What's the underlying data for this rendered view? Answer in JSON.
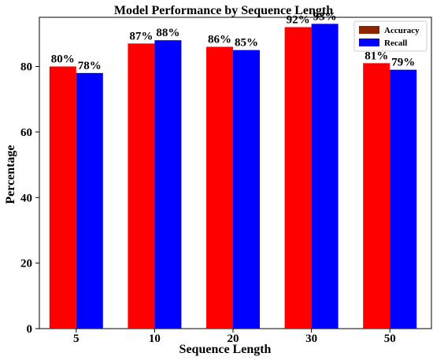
{
  "chart_data": {
    "type": "bar",
    "title": "Model Performance by Sequence Length",
    "xlabel": "Sequence Length",
    "ylabel": "Percentage",
    "categories": [
      "5",
      "10",
      "20",
      "30",
      "50"
    ],
    "series": [
      {
        "name": "Accuracy",
        "values": [
          80,
          87,
          86,
          92,
          81
        ],
        "labels": [
          "80%",
          "87%",
          "86%",
          "92%",
          "81%"
        ],
        "color": "#ff0000",
        "legend_color": "#8b2500"
      },
      {
        "name": "Recall",
        "values": [
          78,
          88,
          85,
          93,
          79
        ],
        "labels": [
          "78%",
          "88%",
          "85%",
          "93%",
          "79%"
        ],
        "color": "#0000ff",
        "legend_color": "#0000ff"
      }
    ],
    "ylim": [
      0,
      95
    ],
    "yticks": [
      0,
      20,
      40,
      60,
      80
    ],
    "ytick_labels": [
      "0",
      "20",
      "40",
      "60",
      "80"
    ],
    "grid": false,
    "legend_position": "top-right"
  }
}
